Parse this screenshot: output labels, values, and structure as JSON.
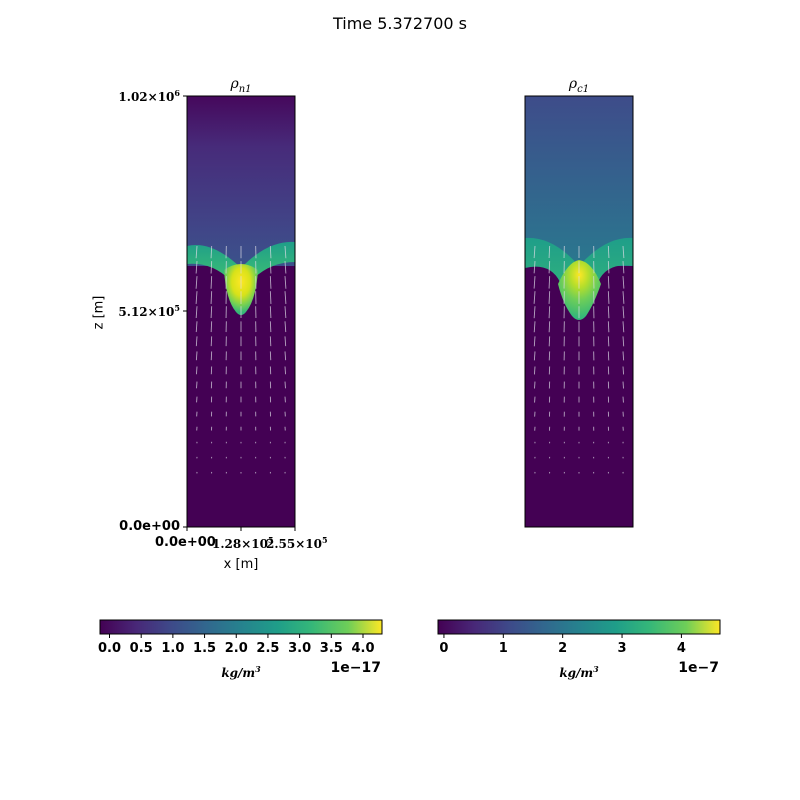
{
  "suptitle": "Time 5.372700 s",
  "chart_data": [
    {
      "type": "heatmap",
      "title": "ρn1",
      "title_symbol": "ρ",
      "title_subscript": "n1",
      "xlabel": "x [m]",
      "ylabel": "z [m]",
      "xlim": [
        0,
        255000
      ],
      "ylim": [
        0,
        1020000
      ],
      "xticks": [
        {
          "value": 0,
          "label": "0.0e+00"
        },
        {
          "value": 128000,
          "label_mantissa": "1.28",
          "label_exponent": "5"
        },
        {
          "value": 255000,
          "label_mantissa": "2.55",
          "label_exponent": "5"
        }
      ],
      "yticks": [
        {
          "value": 0,
          "label": "0.0e+00"
        },
        {
          "value": 512000,
          "label_mantissa": "5.12",
          "label_exponent": "5"
        },
        {
          "value": 1020000,
          "label_mantissa": "1.02",
          "label_exponent": "6"
        }
      ],
      "overlay": "velocity vector arrows",
      "colormap": "viridis",
      "colorbar": {
        "min": -1e-18,
        "max": 4.3e-17,
        "ticks": [
          "0.0",
          "0.5",
          "1.0",
          "1.5",
          "2.0",
          "2.5",
          "3.0",
          "3.5",
          "4.0"
        ],
        "tick_values": [
          0.0,
          0.5,
          1.0,
          1.5,
          2.0,
          2.5,
          3.0,
          3.5,
          4.0
        ],
        "range_scaled": [
          -0.15,
          4.3
        ],
        "offset_text": "1e−17",
        "unit_base": "kg/m",
        "unit_exp": "3"
      }
    },
    {
      "type": "heatmap",
      "title": "ρc1",
      "title_symbol": "ρ",
      "title_subscript": "c1",
      "xlim": [
        0,
        255000
      ],
      "ylim": [
        0,
        1020000
      ],
      "overlay": "velocity vector arrows",
      "colormap": "viridis",
      "colorbar": {
        "ticks": [
          "0",
          "1",
          "2",
          "3",
          "4"
        ],
        "tick_values": [
          0,
          1,
          2,
          3,
          4
        ],
        "range_scaled": [
          -0.1,
          4.65
        ],
        "offset_text": "1e−7",
        "unit_base": "kg/m",
        "unit_exp": "3"
      }
    }
  ],
  "colors": {
    "viridis_low": "#440154",
    "viridis_mid": "#21918c",
    "viridis_high": "#fde725"
  }
}
